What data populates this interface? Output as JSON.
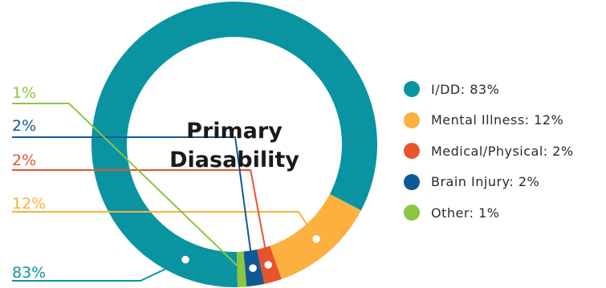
{
  "chart_data": {
    "type": "pie",
    "title": "Primary Diasability",
    "title_lines": [
      "Primary",
      "Diasability"
    ],
    "slices": [
      {
        "key": "idd",
        "label": "I/DD: 83%",
        "pct_label": "83%",
        "value": 83,
        "color": "#0a94a2"
      },
      {
        "key": "mental",
        "label": "Mental Illness: 12%",
        "pct_label": "12%",
        "value": 12,
        "color": "#fbb040"
      },
      {
        "key": "medical",
        "label": "Medical/Physical: 2%",
        "pct_label": "2%",
        "value": 2,
        "color": "#e8542d"
      },
      {
        "key": "brain",
        "label": "Brain Injury: 2%",
        "pct_label": "2%",
        "value": 2,
        "color": "#0f5a96"
      },
      {
        "key": "other",
        "label": "Other: 1%",
        "pct_label": "1%",
        "value": 1,
        "color": "#8cc63f"
      }
    ],
    "legend_position": "right"
  }
}
